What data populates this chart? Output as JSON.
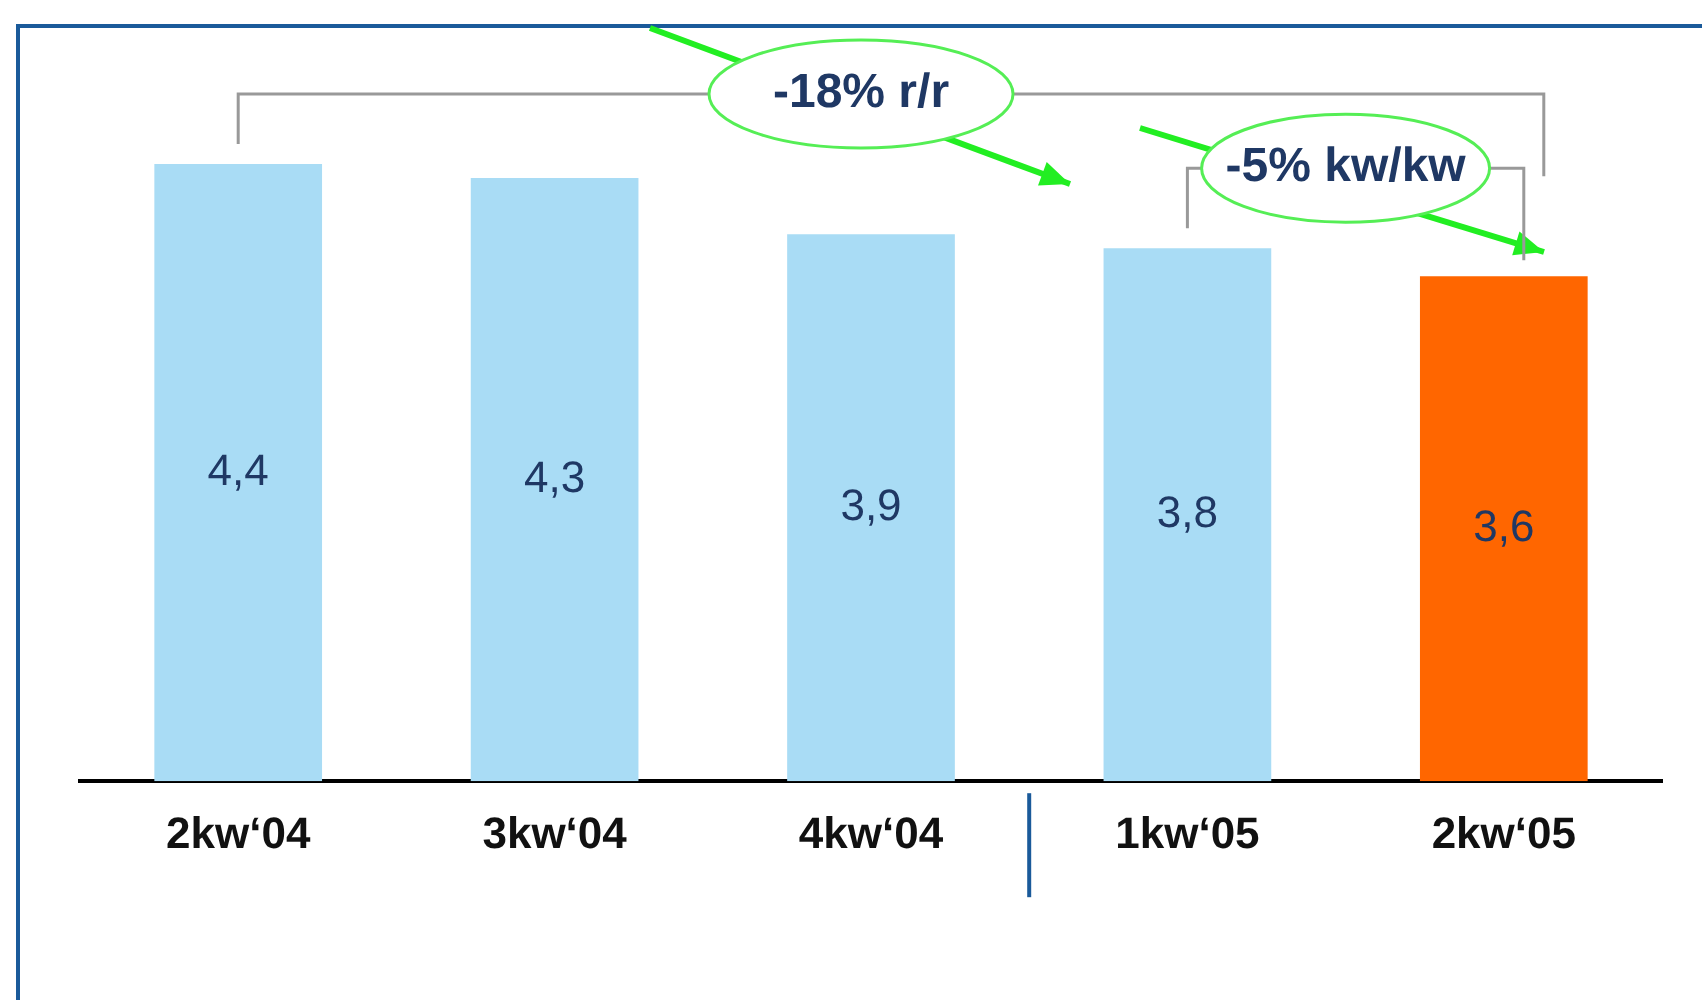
{
  "chart_data": {
    "type": "bar",
    "categories": [
      "2kw‘04",
      "3kw‘04",
      "4kw‘04",
      "1kw‘05",
      "2kw‘05"
    ],
    "values": [
      4.4,
      4.3,
      3.9,
      3.8,
      3.6
    ],
    "colors": [
      "#a9dcf5",
      "#a9dcf5",
      "#a9dcf5",
      "#a9dcf5",
      "#ff6600"
    ],
    "value_labels": [
      "4,4",
      "4,3",
      "3,9",
      "3,8",
      "3,6"
    ],
    "tick_labels": "x",
    "grid": false,
    "legend": false,
    "annotations": [
      "-18% r/r",
      "-5% kw/kw"
    ]
  }
}
